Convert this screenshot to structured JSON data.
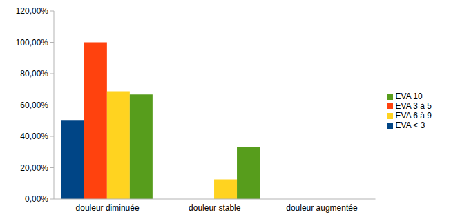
{
  "chart_data": {
    "type": "bar",
    "categories": [
      "douleur diminuée",
      "douleur stable",
      "douleur augmentée"
    ],
    "series": [
      {
        "name": "EVA < 3",
        "color": "#004586",
        "values": [
          50,
          0,
          0
        ]
      },
      {
        "name": "EVA 3 à 5",
        "color": "#ff420e",
        "values": [
          100,
          0,
          0
        ]
      },
      {
        "name": "EVA 6 à 9",
        "color": "#ffd320",
        "values": [
          68.75,
          12.5,
          0
        ]
      },
      {
        "name": "EVA 10",
        "color": "#579d1c",
        "values": [
          66.67,
          33.33,
          0
        ]
      }
    ],
    "ylim": [
      0,
      120
    ],
    "yticks": [
      {
        "value": 0,
        "label": "0,00%"
      },
      {
        "value": 20,
        "label": "20,00%"
      },
      {
        "value": 40,
        "label": "40,00%"
      },
      {
        "value": 60,
        "label": "60,00%"
      },
      {
        "value": 80,
        "label": "80,00%"
      },
      {
        "value": 100,
        "label": "100,00%"
      },
      {
        "value": 120,
        "label": "120,00%"
      }
    ],
    "grid": false,
    "legend": "right"
  }
}
